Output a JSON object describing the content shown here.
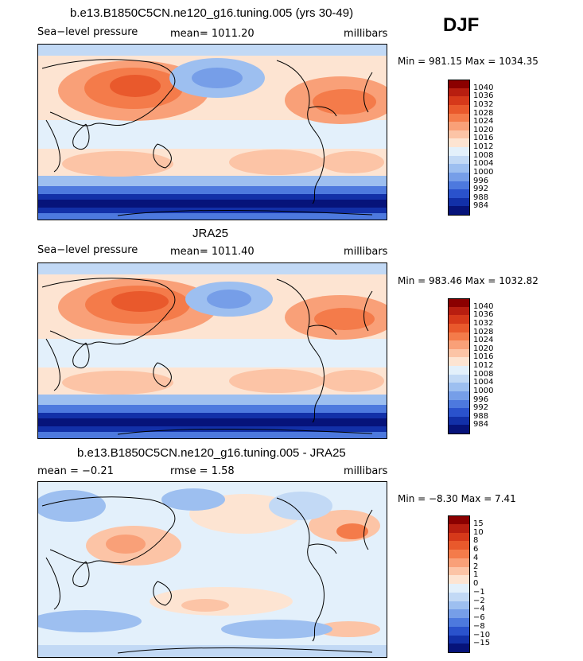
{
  "season": "DJF",
  "panels": [
    {
      "title": "b.e13.B1850C5CN.ne120_g16.tuning.005 (yrs 30-49)",
      "left_label": "Sea−level pressure",
      "center_label": "mean=  1011.20",
      "right_label": "millibars",
      "stats": "Min =  981.15  Max =  1034.35",
      "colorbar": {
        "labels": [
          "1040",
          "1036",
          "1032",
          "1028",
          "1024",
          "1020",
          "1016",
          "1012",
          "1008",
          "1004",
          "1000",
          "996",
          "992",
          "988",
          "984"
        ],
        "colors": [
          "#8b0000",
          "#b81e10",
          "#d6391a",
          "#e9592c",
          "#f47b4a",
          "#f9a078",
          "#fcc4a6",
          "#fde4d2",
          "#e3f0fb",
          "#c2d9f5",
          "#9dbff0",
          "#769ee8",
          "#4d79de",
          "#2a52cc",
          "#1230a8",
          "#06137a"
        ]
      }
    },
    {
      "title": "JRA25",
      "left_label": "Sea−level pressure",
      "center_label": "mean=  1011.40",
      "right_label": "millibars",
      "stats": "Min =  983.46  Max =  1032.82",
      "colorbar": {
        "labels": [
          "1040",
          "1036",
          "1032",
          "1028",
          "1024",
          "1020",
          "1016",
          "1012",
          "1008",
          "1004",
          "1000",
          "996",
          "992",
          "988",
          "984"
        ],
        "colors": [
          "#8b0000",
          "#b81e10",
          "#d6391a",
          "#e9592c",
          "#f47b4a",
          "#f9a078",
          "#fcc4a6",
          "#fde4d2",
          "#e3f0fb",
          "#c2d9f5",
          "#9dbff0",
          "#769ee8",
          "#4d79de",
          "#2a52cc",
          "#1230a8",
          "#06137a"
        ]
      }
    },
    {
      "title": "b.e13.B1850C5CN.ne120_g16.tuning.005 - JRA25",
      "left_label": "mean =   −0.21",
      "center_label": "rmse =    1.58",
      "right_label": "millibars",
      "stats": "Min =  −8.30  Max =    7.41",
      "colorbar": {
        "labels": [
          "15",
          "10",
          "8",
          "6",
          "4",
          "2",
          "1",
          "0",
          "−1",
          "−2",
          "−4",
          "−6",
          "−8",
          "−10",
          "−15"
        ],
        "colors": [
          "#8b0000",
          "#b81e10",
          "#d6391a",
          "#e9592c",
          "#f47b4a",
          "#f9a078",
          "#fcc4a6",
          "#fde4d2",
          "#e3f0fb",
          "#c2d9f5",
          "#9dbff0",
          "#769ee8",
          "#4d79de",
          "#2a52cc",
          "#1230a8",
          "#06137a"
        ]
      }
    }
  ]
}
